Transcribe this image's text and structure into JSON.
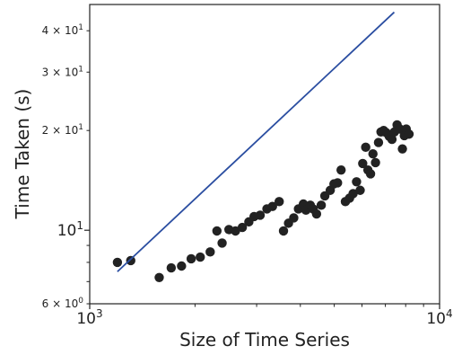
{
  "chart_data": {
    "type": "scatter",
    "title": "",
    "xlabel": "Size of Time Series",
    "ylabel": "Time Taken (s)",
    "xscale": "log",
    "yscale": "log",
    "xlim": [
      1000,
      10000
    ],
    "ylim": [
      6,
      48
    ],
    "grid": false,
    "legend": "none",
    "x_ticks": [
      {
        "value": 1000,
        "base": "10",
        "exp": "3"
      },
      {
        "value": 10000,
        "base": "10",
        "exp": "4"
      }
    ],
    "y_ticks": [
      {
        "value": 6,
        "mant": "6",
        "base": "10",
        "exp": "0"
      },
      {
        "value": 10,
        "mant": "",
        "base": "10",
        "exp": "1"
      },
      {
        "value": 20,
        "mant": "2",
        "base": "10",
        "exp": "1"
      },
      {
        "value": 30,
        "mant": "3",
        "base": "10",
        "exp": "1"
      },
      {
        "value": 40,
        "mant": "4",
        "base": "10",
        "exp": "1"
      }
    ],
    "series": [
      {
        "type": "scatter",
        "color": "#222222",
        "points": [
          [
            1200,
            8.0
          ],
          [
            1310,
            8.1
          ],
          [
            1580,
            7.2
          ],
          [
            1710,
            7.7
          ],
          [
            1830,
            7.8
          ],
          [
            1950,
            8.2
          ],
          [
            2070,
            8.3
          ],
          [
            2210,
            8.6
          ],
          [
            2310,
            9.95
          ],
          [
            2390,
            9.15
          ],
          [
            2500,
            10.05
          ],
          [
            2610,
            9.95
          ],
          [
            2730,
            10.2
          ],
          [
            2850,
            10.6
          ],
          [
            2950,
            11.0
          ],
          [
            3070,
            11.1
          ],
          [
            3210,
            11.6
          ],
          [
            3330,
            11.8
          ],
          [
            3480,
            12.2
          ],
          [
            3580,
            9.95
          ],
          [
            3700,
            10.5
          ],
          [
            3830,
            10.9
          ],
          [
            3950,
            11.6
          ],
          [
            4080,
            12.0
          ],
          [
            4150,
            11.5
          ],
          [
            4270,
            11.9
          ],
          [
            4350,
            11.6
          ],
          [
            4450,
            11.2
          ],
          [
            4590,
            11.9
          ],
          [
            4700,
            12.7
          ],
          [
            4870,
            13.2
          ],
          [
            4990,
            13.8
          ],
          [
            5110,
            13.9
          ],
          [
            5230,
            15.2
          ],
          [
            5380,
            12.2
          ],
          [
            5530,
            12.5
          ],
          [
            5660,
            12.9
          ],
          [
            5790,
            14.0
          ],
          [
            5930,
            13.2
          ],
          [
            6030,
            15.9
          ],
          [
            6150,
            17.8
          ],
          [
            6240,
            15.2
          ],
          [
            6350,
            14.8
          ],
          [
            6450,
            17.0
          ],
          [
            6560,
            16.0
          ],
          [
            6690,
            18.4
          ],
          [
            6800,
            19.8
          ],
          [
            6920,
            20.0
          ],
          [
            7040,
            19.7
          ],
          [
            7180,
            19.2
          ],
          [
            7310,
            18.8
          ],
          [
            7430,
            19.8
          ],
          [
            7560,
            20.8
          ],
          [
            7700,
            20.2
          ],
          [
            7830,
            17.6
          ],
          [
            7930,
            19.3
          ],
          [
            8030,
            20.2
          ],
          [
            8180,
            19.5
          ]
        ]
      },
      {
        "type": "line",
        "color": "#2b4ea1",
        "points": [
          [
            1200,
            7.5
          ],
          [
            7420,
            45.5
          ]
        ]
      }
    ]
  }
}
